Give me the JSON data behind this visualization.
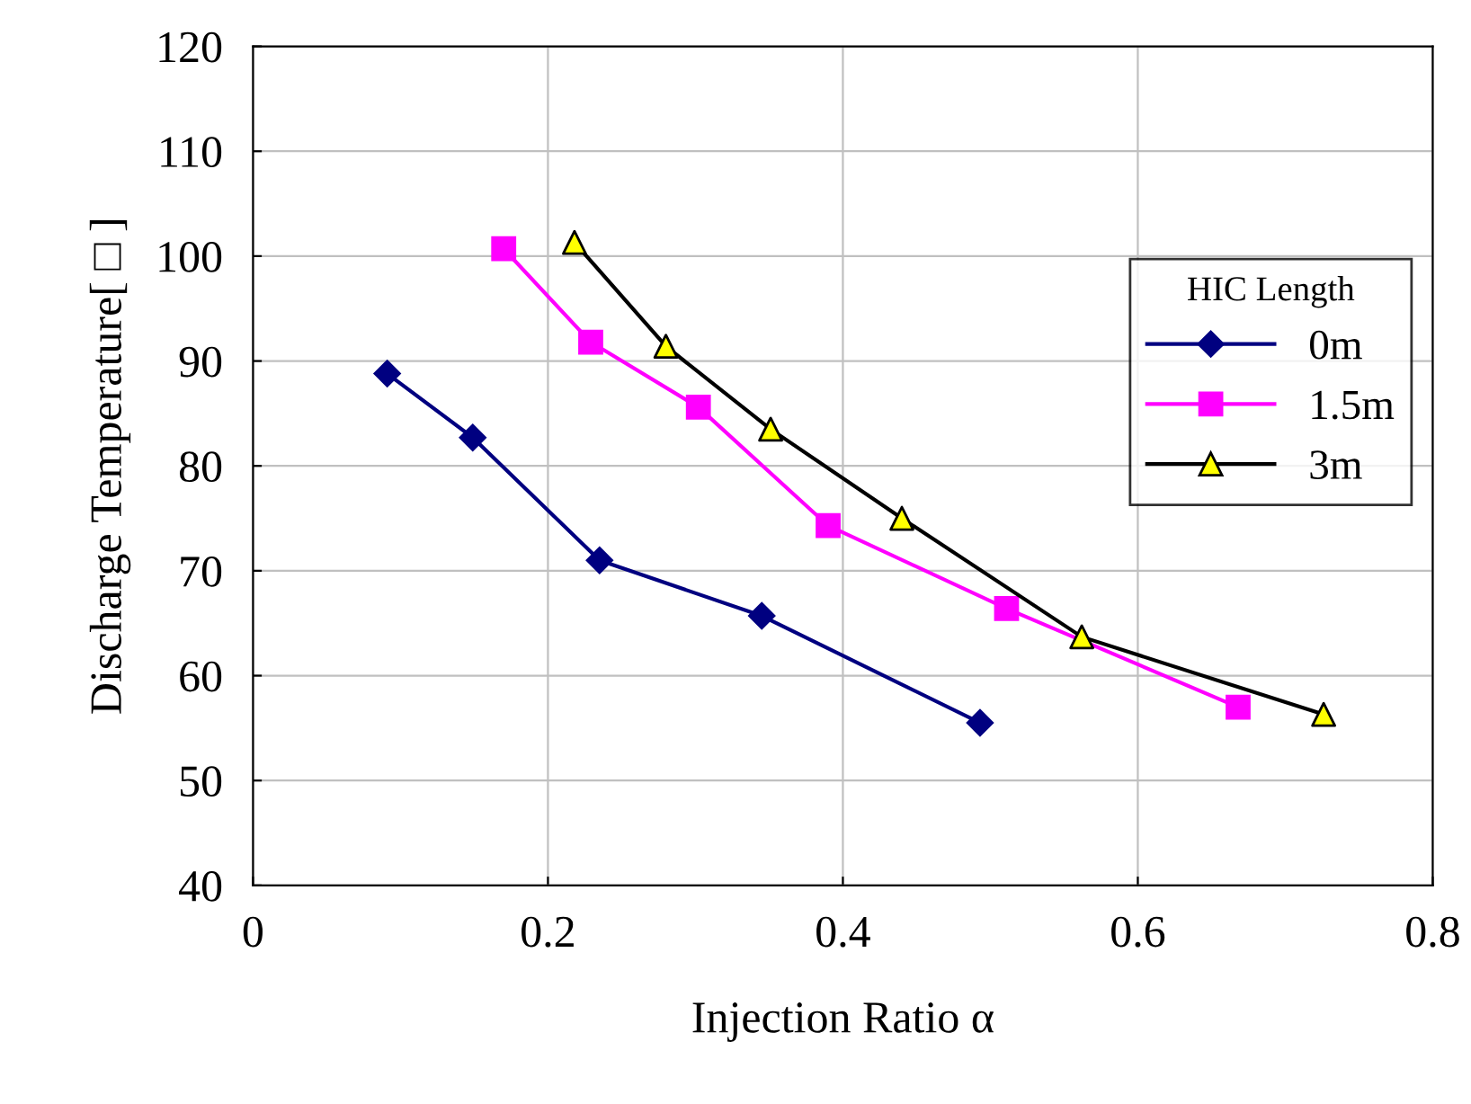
{
  "chart_data": {
    "type": "line",
    "xlabel": "Injection Ratio α",
    "ylabel": "Discharge Temperature[ □ ]",
    "legend_title": "HIC Length",
    "xlim": [
      0,
      0.8
    ],
    "xticks": [
      0,
      0.2,
      0.4,
      0.6,
      0.8
    ],
    "ylim": [
      40,
      120
    ],
    "yticks": [
      40,
      50,
      60,
      70,
      80,
      90,
      100,
      110,
      120
    ],
    "grid": true,
    "legend": "right",
    "line_style": "solid",
    "series": [
      {
        "name": "0m",
        "color": "#000080",
        "marker": "diamond",
        "x": [
          0.091,
          0.149,
          0.235,
          0.345,
          0.493
        ],
        "values": [
          88.8,
          82.7,
          71.0,
          65.7,
          55.5
        ]
      },
      {
        "name": "1.5m",
        "color": "#ff00ff",
        "marker": "square",
        "x": [
          0.17,
          0.229,
          0.302,
          0.39,
          0.511,
          0.668
        ],
        "values": [
          100.7,
          91.8,
          85.6,
          74.3,
          66.4,
          57.0
        ]
      },
      {
        "name": "3m",
        "color": "#000000",
        "colors": [
          "#ffff00",
          "#ffff00",
          "#ffff00",
          "#ffff00",
          "#ffff00",
          "#ffff00"
        ],
        "marker": "triangle",
        "x": [
          0.218,
          0.28,
          0.351,
          0.44,
          0.562,
          0.726
        ],
        "values": [
          101.3,
          91.4,
          83.5,
          75.0,
          63.7,
          56.3
        ]
      }
    ]
  }
}
